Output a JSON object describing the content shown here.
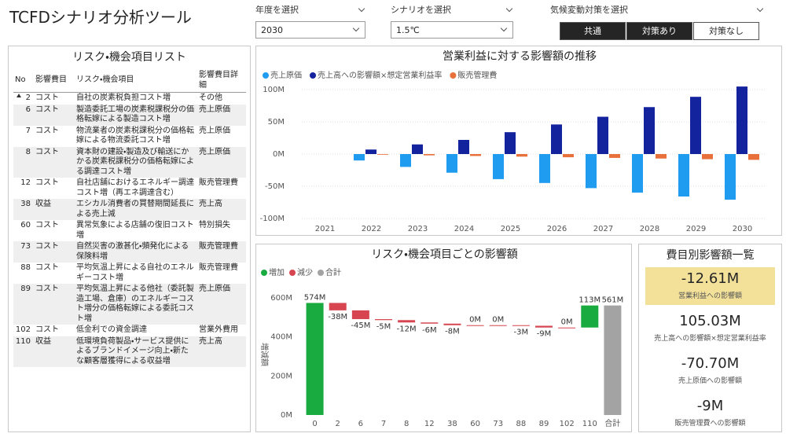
{
  "header": {
    "title": "TCFDシナリオ分析ツール"
  },
  "filters": [
    {
      "label": "年度を選択",
      "value": "2030"
    },
    {
      "label": "シナリオを選択",
      "value": "1.5℃"
    }
  ],
  "measure_filter": {
    "label": "気候変動対策を選択",
    "options": [
      "共通",
      "対策あり",
      "対策なし"
    ]
  },
  "risk_table": {
    "title": "リスク・機会項目リスト",
    "columns": [
      "No",
      "影響費目",
      "リスク・機会項目",
      "影響費目詳細"
    ],
    "rows": [
      [
        2,
        "コスト",
        "自社の炭素税負担コスト増",
        "その他"
      ],
      [
        6,
        "コスト",
        "製造委託工場の炭素税課税分の価格転嫁による製造コスト増",
        "売上原価"
      ],
      [
        7,
        "コスト",
        "物流業者の炭素税課税分の価格転嫁による物流委託コスト増",
        "売上原価"
      ],
      [
        8,
        "コスト",
        "資本財の建設・製造及び輸送にかかる炭素税課税分の価格転嫁による調達コスト増",
        "売上原価"
      ],
      [
        12,
        "コスト",
        "自社店舗におけるエネルギー調達コスト増（再エネ調達含む）",
        "販売管理費"
      ],
      [
        38,
        "収益",
        "エシカル消費者の買替期間延長による売上減",
        "売上高"
      ],
      [
        60,
        "コスト",
        "異常気象による店舗の復旧コスト増",
        "特別損失"
      ],
      [
        73,
        "コスト",
        "自然災害の激甚化・頻発化による保険料増",
        "販売管理費"
      ],
      [
        88,
        "コスト",
        "平均気温上昇による自社のエネルギーコスト増",
        "販売管理費"
      ],
      [
        89,
        "コスト",
        "平均気温上昇による他社（委託製造工場、倉庫）のエネルギーコスト増分の価格転嫁による委託コスト増",
        "売上原価"
      ],
      [
        102,
        "コスト",
        "低金利での資金調達",
        "営業外費用"
      ],
      [
        110,
        "収益",
        "低環境負荷製品・サービス提供によるブランドイメージ向上・新たな顧客層獲得による収益増",
        "売上高"
      ]
    ]
  },
  "chart_data": [
    {
      "type": "bar",
      "title": "営業利益に対する影響額の推移",
      "categories": [
        "2021",
        "2022",
        "2023",
        "2024",
        "2025",
        "2026",
        "2027",
        "2028",
        "2029",
        "2030"
      ],
      "series": [
        {
          "name": "売上原価",
          "color": "#1f9bf0",
          "values": [
            0,
            -10,
            -20,
            -29,
            -39,
            -45,
            -53,
            -60,
            -66,
            -71
          ]
        },
        {
          "name": "売上高への影響額×想定営業利益率",
          "color": "#13239e",
          "values": [
            0,
            7,
            15,
            22,
            34,
            46,
            58,
            73,
            89,
            105
          ]
        },
        {
          "name": "販売管理費",
          "color": "#e8703a",
          "values": [
            0,
            -1,
            -2,
            -3,
            -4,
            -5,
            -6,
            -7,
            -8,
            -9
          ]
        }
      ],
      "ylim": [
        -110,
        110
      ],
      "yticks": [
        {
          "value": -100,
          "label": "-100M"
        },
        {
          "value": -50,
          "label": "-50M"
        },
        {
          "value": 0,
          "label": "0M"
        },
        {
          "value": 50,
          "label": "50M"
        },
        {
          "value": 100,
          "label": "100M"
        }
      ],
      "grid": true
    },
    {
      "type": "waterfall",
      "title": "リスク・機会項目ごとの影響額",
      "y_label": "増減額",
      "legend": [
        {
          "name": "増加",
          "color": "#1aab40"
        },
        {
          "name": "減少",
          "color": "#d64550"
        },
        {
          "name": "合計",
          "color": "#a3a3a3"
        }
      ],
      "categories": [
        "0",
        "2",
        "6",
        "7",
        "8",
        "12",
        "38",
        "60",
        "73",
        "88",
        "89",
        "102",
        "110",
        "合計"
      ],
      "values": [
        574,
        -38,
        -45,
        -5,
        -12,
        -6,
        -8,
        0,
        0,
        -3,
        -9,
        0,
        113,
        561
      ],
      "value_labels": [
        "574M",
        "-38M",
        "-45M",
        "-5M",
        "-12M",
        "-6M",
        "-8M",
        "0M",
        "0M",
        "-3M",
        "-9M",
        "0M",
        "113M",
        "561M"
      ],
      "ylim": [
        0,
        620
      ],
      "yticks": [
        {
          "value": 0,
          "label": "0M"
        },
        {
          "value": 200,
          "label": "200M"
        },
        {
          "value": 400,
          "label": "400M"
        },
        {
          "value": 600,
          "label": "600M"
        }
      ]
    }
  ],
  "summary": {
    "title": "費目別影響額一覧",
    "cards": [
      {
        "value": "-12.61M",
        "label": "営業利益への影響額"
      },
      {
        "value": "105.03M",
        "label": "売上高への影響額×想定営業利益率"
      },
      {
        "value": "-70.70M",
        "label": "売上原価への影響額"
      },
      {
        "value": "-9M",
        "label": "販売管理費への影響額"
      }
    ]
  }
}
